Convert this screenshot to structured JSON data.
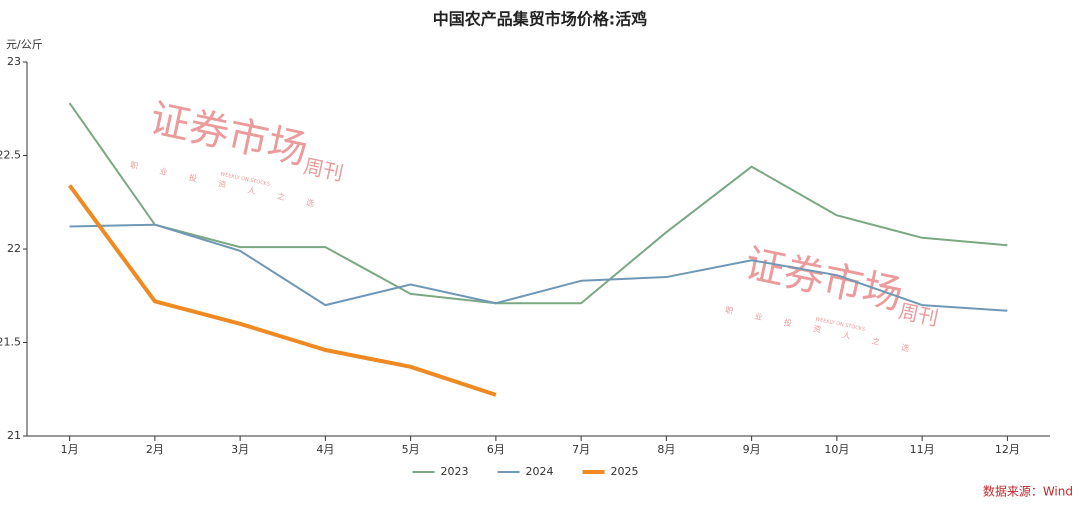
{
  "chart_data": {
    "type": "line",
    "title": "中国农产品集贸市场价格:活鸡",
    "y_label": "元/公斤",
    "categories": [
      "1月",
      "2月",
      "3月",
      "4月",
      "5月",
      "6月",
      "7月",
      "8月",
      "9月",
      "10月",
      "11月",
      "12月"
    ],
    "series": [
      {
        "name": "2023",
        "color": "#7aa882",
        "width": 2,
        "values": [
          22.78,
          22.13,
          22.01,
          22.01,
          21.76,
          21.71,
          21.71,
          22.09,
          22.44,
          22.18,
          22.06,
          22.02
        ]
      },
      {
        "name": "2024",
        "color": "#6f98b6",
        "width": 2,
        "values": [
          22.12,
          22.13,
          21.99,
          21.7,
          21.81,
          21.71,
          21.83,
          21.85,
          21.94,
          21.86,
          21.7,
          21.67
        ]
      },
      {
        "name": "2025",
        "color": "#ef8a22",
        "width": 4,
        "values": [
          22.34,
          21.72,
          21.6,
          21.46,
          21.37,
          21.22,
          null,
          null,
          null,
          null,
          null,
          null
        ]
      }
    ],
    "ylim": [
      21,
      23
    ],
    "yticks": [
      21,
      21.5,
      22,
      22.5,
      23
    ],
    "legend": "bottom",
    "source": "数据来源：Wind",
    "watermark": {
      "main": "证券市场",
      "side": "周刊",
      "english": "WEEKLY ON STOCKS",
      "slogan": "职业投资人之选"
    }
  }
}
